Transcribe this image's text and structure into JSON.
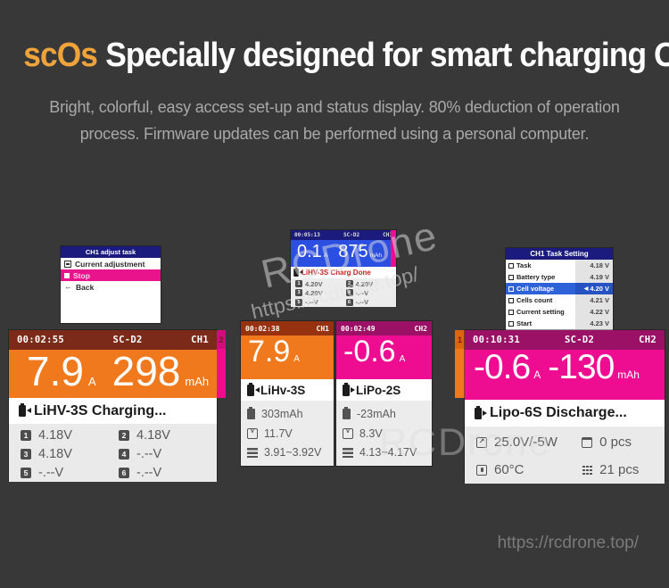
{
  "colors": {
    "accent_orange": "#f1791d",
    "accent_magenta": "#ee0d90",
    "accent_blue": "#2b4fe0",
    "navy_header": "#1b1b7e",
    "ch1_header": "#7b2a19",
    "ch2_header": "#9a1166",
    "page_bg": "#383838"
  },
  "hero": {
    "brand": "scOs",
    "title_rest": "Specially designed for smart charging OS",
    "subtitle_line1": "Bright, colorful, easy access set-up and status display. 80% deduction of operation",
    "subtitle_line2": "process. Firmware updates can be performed using a personal computer."
  },
  "watermarks": {
    "diagonal_name": "RCDrone",
    "diagonal_url": "https://rcdrone.top/",
    "middle_name": "RCDrone",
    "footer_url": "https://rcdrone.top/"
  },
  "menu_screen": {
    "header": "CH1 adjust task",
    "items": [
      {
        "label": "Current adjustment"
      },
      {
        "label": "Stop"
      },
      {
        "label": "Back"
      }
    ]
  },
  "mini_status_screen": {
    "time": "00:05:13",
    "device": "SC-D2",
    "channel": "CH1",
    "current": "0.1",
    "current_unit": "A",
    "capacity": "875",
    "capacity_unit": "mAh",
    "status": "LiHV-3S Charg Done",
    "cells": [
      {
        "n": "1",
        "v": "4.20V"
      },
      {
        "n": "2",
        "v": "4.20V"
      },
      {
        "n": "3",
        "v": "4.20V"
      },
      {
        "n": "4",
        "v": "-.--V"
      },
      {
        "n": "5",
        "v": "-.--V"
      },
      {
        "n": "6",
        "v": "-.--V"
      }
    ]
  },
  "task_setting_screen": {
    "header": "CH1 Task Setting",
    "rows": [
      {
        "label": "Task",
        "value": "4.18 V"
      },
      {
        "label": "Battery type",
        "value": "4.19 V"
      },
      {
        "label": "Cell voltage",
        "value": "4.20 V"
      },
      {
        "label": "Cells count",
        "value": "4.21 V"
      },
      {
        "label": "Current setting",
        "value": "4.22 V"
      },
      {
        "label": "Start",
        "value": "4.23 V"
      }
    ],
    "selected_pointer": "◀"
  },
  "ch1_big_screen": {
    "time": "00:02:55",
    "device": "SC-D2",
    "channel": "CH1",
    "other_channel_tab": "2",
    "current": "7.9",
    "current_unit": "A",
    "capacity": "298",
    "capacity_unit": "mAh",
    "status": "LiHV-3S Charging...",
    "cells": [
      {
        "n": "1",
        "v": "4.18V"
      },
      {
        "n": "2",
        "v": "4.18V"
      },
      {
        "n": "3",
        "v": "4.18V"
      },
      {
        "n": "4",
        "v": "-.--V"
      },
      {
        "n": "5",
        "v": "-.--V"
      },
      {
        "n": "6",
        "v": "-.--V"
      }
    ]
  },
  "ch1_mini_screen": {
    "time": "00:02:38",
    "channel": "CH1",
    "current": "7.9",
    "current_unit": "A",
    "battery": "LiHv-3S",
    "rows": [
      {
        "value": "303mAh"
      },
      {
        "value": "11.7V"
      },
      {
        "value": "3.91~3.92V"
      }
    ]
  },
  "ch2_mini_screen": {
    "time": "00:02:49",
    "channel": "CH2",
    "current": "-0.6",
    "current_unit": "A",
    "battery": "LiPo-2S",
    "rows": [
      {
        "value": "-23mAh"
      },
      {
        "value": "8.3V"
      },
      {
        "value": "4.13~4.17V"
      }
    ]
  },
  "ch2_big_screen": {
    "time": "00:10:31",
    "device": "SC-D2",
    "channel": "CH2",
    "other_channel_tab": "1",
    "current": "-0.6",
    "current_unit": "A",
    "capacity": "-130",
    "capacity_unit": "mAh",
    "status": "Lipo-6S Discharge...",
    "stats": [
      {
        "value": "25.0V/-5W"
      },
      {
        "value": "0 pcs"
      },
      {
        "value": "60°C"
      },
      {
        "value": "21 pcs"
      }
    ]
  }
}
